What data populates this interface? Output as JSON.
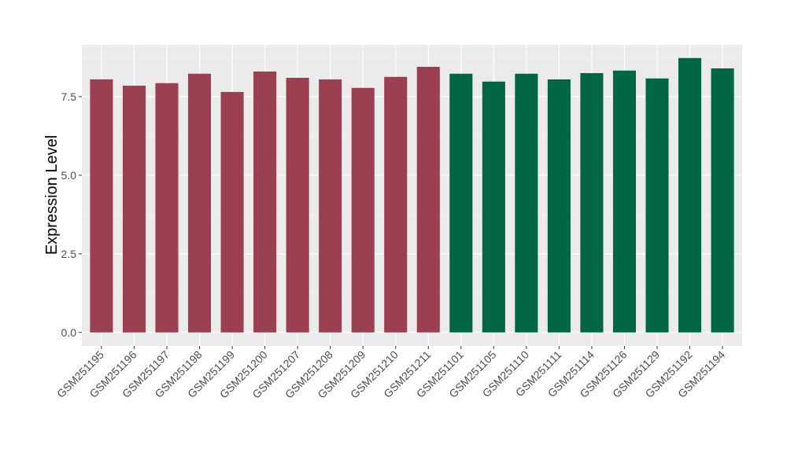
{
  "chart_data": {
    "type": "bar",
    "title": "",
    "xlabel": "",
    "ylabel": "Expression Level",
    "ylim": [
      -0.43,
      9.15
    ],
    "yticks": [
      "0.0",
      "2.5",
      "5.0",
      "7.5"
    ],
    "ytick_values": [
      0,
      2.5,
      5,
      7.5
    ],
    "grid": true,
    "legend": "none",
    "categories": [
      "GSM251195",
      "GSM251196",
      "GSM251197",
      "GSM251198",
      "GSM251199",
      "GSM251200",
      "GSM251207",
      "GSM251208",
      "GSM251209",
      "GSM251210",
      "GSM251211",
      "GSM251101",
      "GSM251105",
      "GSM251110",
      "GSM251111",
      "GSM251114",
      "GSM251126",
      "GSM251129",
      "GSM251192",
      "GSM251194"
    ],
    "values": [
      8.05,
      7.85,
      7.93,
      8.23,
      7.65,
      8.3,
      8.1,
      8.05,
      7.78,
      8.13,
      8.45,
      8.23,
      7.98,
      8.23,
      8.05,
      8.25,
      8.33,
      8.08,
      8.73,
      8.4
    ],
    "groups": [
      0,
      0,
      0,
      0,
      0,
      0,
      0,
      0,
      0,
      0,
      0,
      1,
      1,
      1,
      1,
      1,
      1,
      1,
      1,
      1
    ],
    "colors": [
      "#9a4050",
      "#006644"
    ]
  }
}
